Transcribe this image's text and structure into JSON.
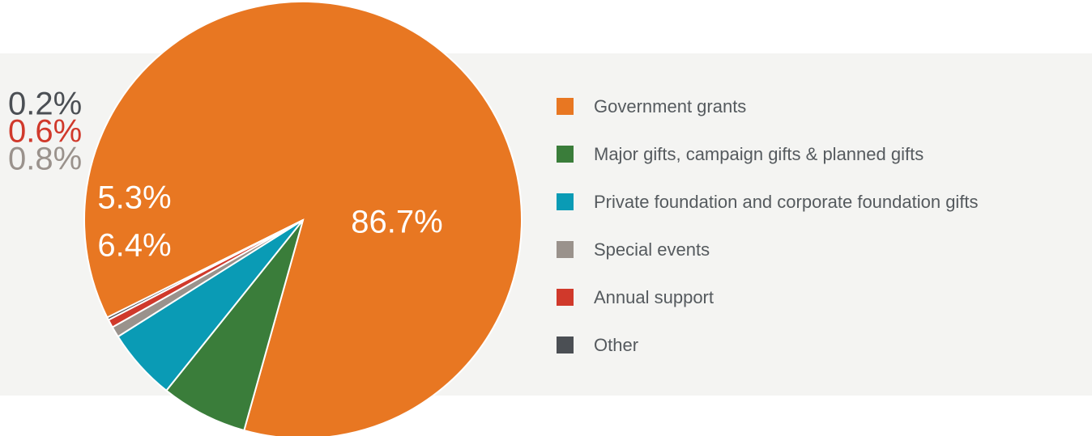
{
  "chart_data": {
    "type": "pie",
    "categories": [
      "Government grants",
      "Major gifts, campaign gifts & planned gifts",
      "Private foundation and corporate foundation gifts",
      "Special events",
      "Annual support",
      "Other"
    ],
    "values": [
      86.7,
      6.4,
      5.3,
      0.8,
      0.6,
      0.2
    ],
    "data_labels": [
      "86.7%",
      "6.4%",
      "5.3%",
      "0.8%",
      "0.6%",
      "0.2%"
    ],
    "colors": [
      "#e87722",
      "#3a7d3a",
      "#0a9bb5",
      "#9a928c",
      "#d0392b",
      "#4b4f54"
    ],
    "label_colors": [
      "#ffffff",
      "#ffffff",
      "#ffffff",
      "#9a928c",
      "#d0392b",
      "#4b4f54"
    ],
    "legend_position": "right",
    "title": ""
  }
}
